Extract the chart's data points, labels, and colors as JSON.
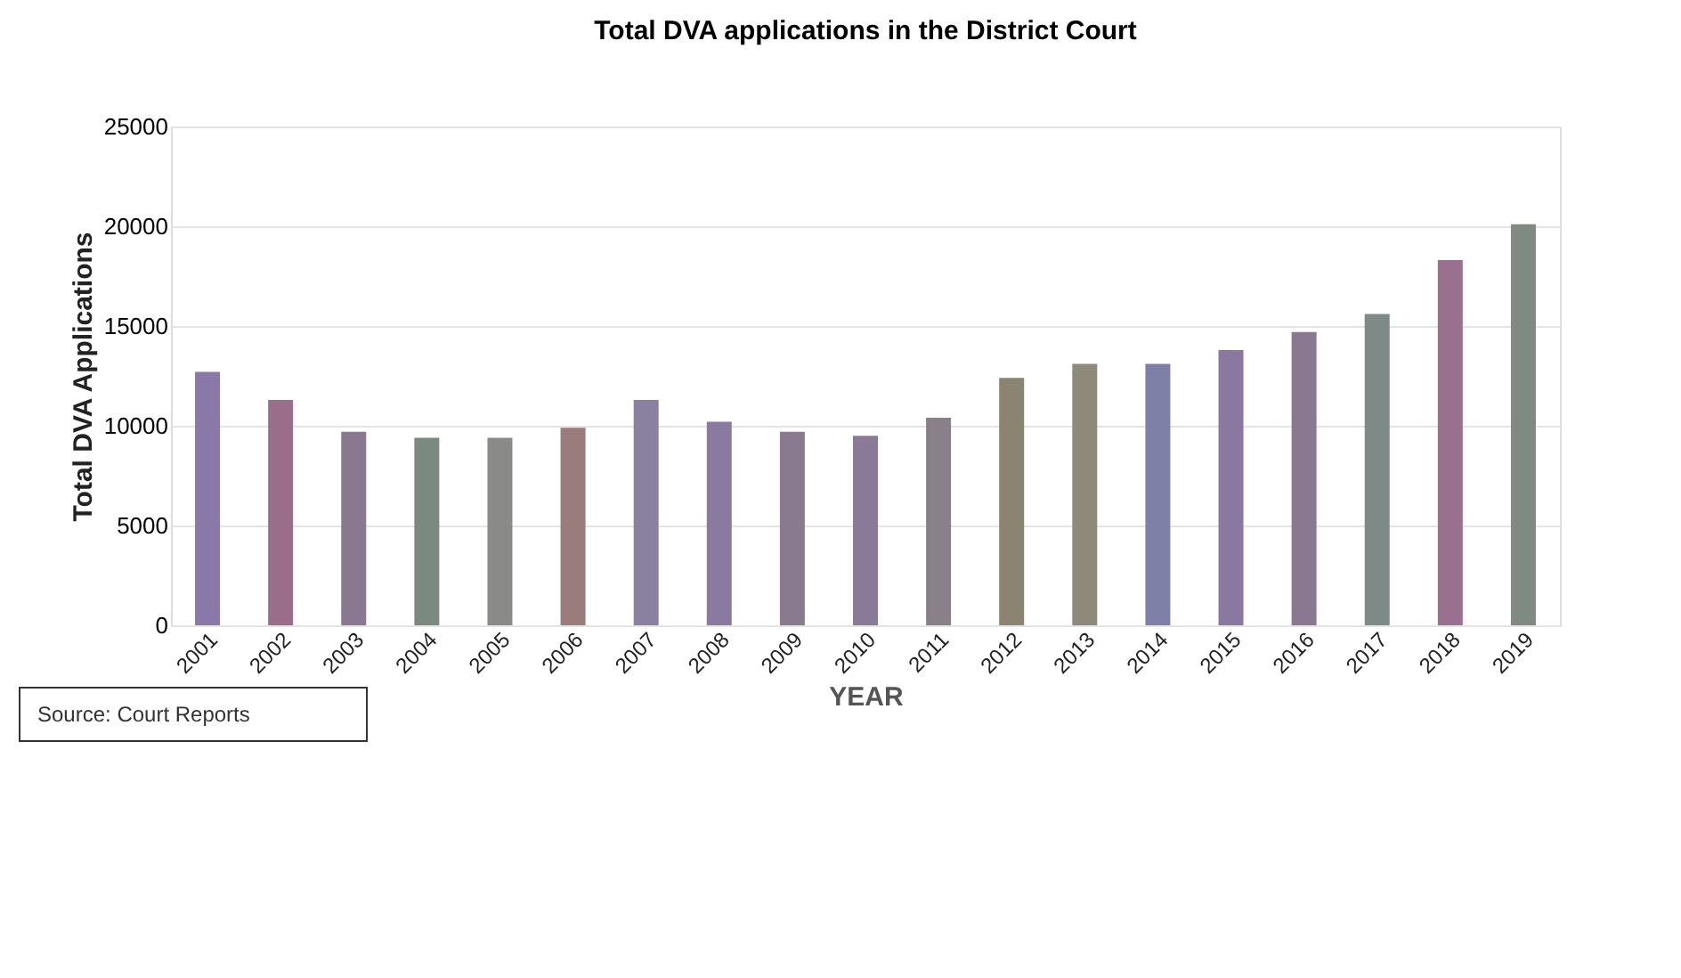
{
  "chart_data": {
    "type": "bar",
    "title": "Total DVA applications in the District Court",
    "xlabel": "YEAR",
    "ylabel": "Total DVA Applications",
    "categories": [
      "2001",
      "2002",
      "2003",
      "2004",
      "2005",
      "2006",
      "2007",
      "2008",
      "2009",
      "2010",
      "2011",
      "2012",
      "2013",
      "2014",
      "2015",
      "2016",
      "2017",
      "2018",
      "2019"
    ],
    "values": [
      12700,
      11300,
      9700,
      9400,
      9400,
      9900,
      11300,
      10200,
      9700,
      9500,
      10400,
      12400,
      13100,
      13100,
      13800,
      14700,
      15600,
      18300,
      20100
    ],
    "colors": [
      "#8a78a8",
      "#9a6e8a",
      "#8a7890",
      "#7a8a80",
      "#8a8a88",
      "#9a7c7c",
      "#8a80a0",
      "#8a7aa0",
      "#8a7a90",
      "#8a7a98",
      "#8a808a",
      "#8a8470",
      "#8e8a7a",
      "#7e80a8",
      "#8a78a0",
      "#8a7890",
      "#7e8a88",
      "#9a7090",
      "#808a80"
    ],
    "ylim": [
      0,
      25000
    ],
    "yticks": [
      0,
      5000,
      10000,
      15000,
      20000,
      25000
    ],
    "grid": "y",
    "annotations": [
      "Source:  Court Reports"
    ]
  }
}
